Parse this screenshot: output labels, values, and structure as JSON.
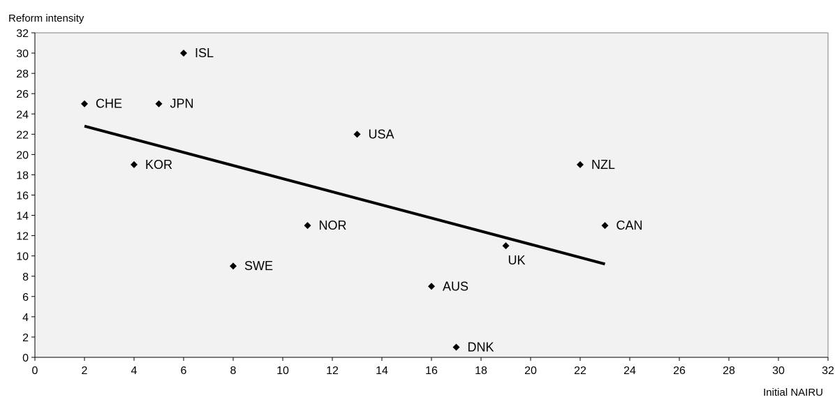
{
  "chart_data": {
    "type": "scatter",
    "title": "",
    "xlabel": "Initial NAIRU",
    "ylabel": "Reform intensity",
    "xlim": [
      0,
      32
    ],
    "ylim": [
      0,
      32
    ],
    "xticks": [
      0,
      2,
      4,
      6,
      8,
      10,
      12,
      14,
      16,
      18,
      20,
      22,
      24,
      26,
      28,
      30,
      32
    ],
    "yticks": [
      0,
      2,
      4,
      6,
      8,
      10,
      12,
      14,
      16,
      18,
      20,
      22,
      24,
      26,
      28,
      30,
      32
    ],
    "grid": false,
    "legend": "none",
    "plot_background": "#f2f2f2",
    "marker_color": "#000000",
    "points": [
      {
        "label": "ISL",
        "x": 6,
        "y": 30
      },
      {
        "label": "CHE",
        "x": 2,
        "y": 25
      },
      {
        "label": "JPN",
        "x": 5,
        "y": 25
      },
      {
        "label": "USA",
        "x": 13,
        "y": 22
      },
      {
        "label": "KOR",
        "x": 4,
        "y": 19
      },
      {
        "label": "NZL",
        "x": 22,
        "y": 19
      },
      {
        "label": "NOR",
        "x": 11,
        "y": 13
      },
      {
        "label": "CAN",
        "x": 23,
        "y": 13
      },
      {
        "label": "UK",
        "x": 19,
        "y": 11
      },
      {
        "label": "SWE",
        "x": 8,
        "y": 9
      },
      {
        "label": "AUS",
        "x": 16,
        "y": 7
      },
      {
        "label": "DNK",
        "x": 17,
        "y": 1
      }
    ],
    "trendline": {
      "x": [
        2,
        23
      ],
      "y": [
        22.8,
        9.2
      ]
    }
  }
}
